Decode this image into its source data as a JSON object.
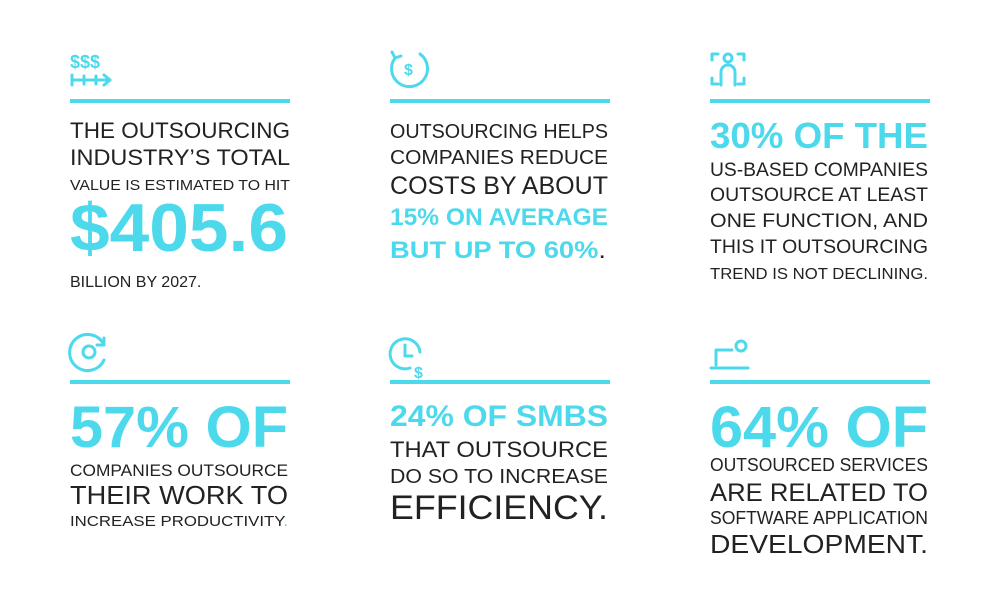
{
  "cards": [
    {
      "lines": [
        "THE OUTSOURCING",
        "INDUSTRY’S TOTAL",
        "VALUE IS ESTIMATED TO HIT",
        "$405.6",
        "BILLION BY 2027."
      ]
    },
    {
      "lines": [
        "OUTSOURCING HELPS",
        "COMPANIES REDUCE",
        "COSTS BY ABOUT",
        "15% ON AVERAGE",
        [
          "BUT UP TO 60%",
          "."
        ]
      ]
    },
    {
      "lines": [
        "30% OF THE",
        "US-BASED COMPANIES",
        "OUTSOURCE AT LEAST",
        "ONE FUNCTION, AND",
        "THIS IT OUTSOURCING",
        "TREND IS NOT DECLINING."
      ]
    },
    {
      "lines": [
        "57% OF",
        "COMPANIES OUTSOURCE",
        "THEIR WORK TO",
        [
          "INCREASE PRODUCTIVITY",
          "."
        ]
      ]
    },
    {
      "lines": [
        "24% OF SMBS",
        "THAT OUTSOURCE",
        "DO SO TO INCREASE",
        "EFFICIENCY."
      ]
    },
    {
      "lines": [
        "64% OF",
        "OUTSOURCED SERVICES",
        "ARE RELATED TO",
        "SOFTWARE APPLICATION",
        "DEVELOPMENT."
      ]
    }
  ]
}
